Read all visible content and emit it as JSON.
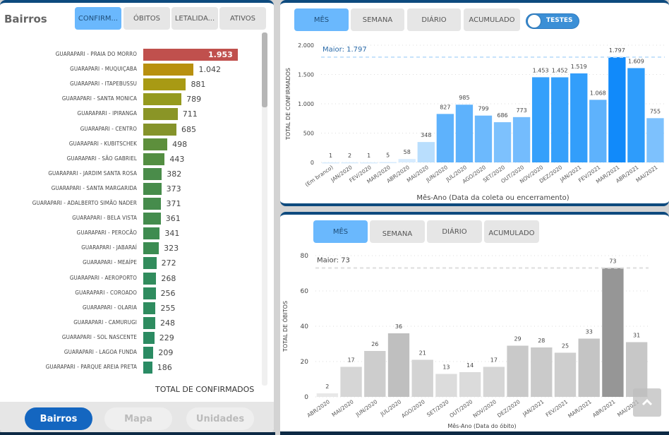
{
  "left_panel": {
    "title": "Bairros",
    "tabs": [
      "CONFIRM...",
      "ÓBITOS",
      "LETALIDA...",
      "ATIVOS"
    ],
    "active_tab": 0,
    "total_label": "TOTAL DE CONFIRMADOS",
    "nav": [
      "Bairros",
      "Mapa",
      "Unidades"
    ],
    "active_nav": 0
  },
  "top_chart_controls": {
    "tabs": [
      "MÊS",
      "SEMANA",
      "DIÁRIO",
      "ACUMULADO"
    ],
    "active_tab": 0,
    "toggle_label": "TESTES"
  },
  "bottom_chart_controls": {
    "tabs": [
      "MÊS",
      "SEMANA",
      "DIÁRIO",
      "ACUMULADO"
    ],
    "active_tab": 0
  },
  "chart_data": [
    {
      "type": "bar",
      "orientation": "horizontal",
      "title": "Bairros",
      "xlabel": "TOTAL DE CONFIRMADOS",
      "categories": [
        "GUARAPARI - PRAIA DO MORRO",
        "GUARAPARI - MUQUIÇABA",
        "GUARAPARI - ITAPEBUSSU",
        "GUARAPARI - SANTA MONICA",
        "GUARAPARI - IPIRANGA",
        "GUARAPARI - CENTRO",
        "GUARAPARI - KUBITSCHEK",
        "GUARAPARI - SÃO GABRIEL",
        "GUARAPARI - JARDIM SANTA ROSA",
        "GUARAPARI - SANTA MARGARIDA",
        "GUARAPARI - ADALBERTO SIMÃO NADER",
        "GUARAPARI - BELA VISTA",
        "GUARAPARI - PEROCÃO",
        "GUARAPARI - JABARAÍ",
        "GUARAPARI - MEAÍPE",
        "GUARAPARI - AEROPORTO",
        "GUARAPARI - COROADO",
        "GUARAPARI - OLARIA",
        "GUARAPARI - CAMURUGI",
        "GUARAPARI - SOL NASCENTE",
        "GUARAPARI - LAGOA FUNDA",
        "GUARAPARI - PARQUE AREIA PRETA"
      ],
      "values": [
        1953,
        1042,
        881,
        789,
        711,
        685,
        498,
        443,
        382,
        373,
        371,
        361,
        341,
        323,
        272,
        268,
        256,
        255,
        248,
        229,
        209,
        186
      ],
      "labels": [
        "1.953",
        "1.042",
        "881",
        "789",
        "711",
        "685",
        "498",
        "443",
        "382",
        "373",
        "371",
        "361",
        "341",
        "323",
        "272",
        "268",
        "256",
        "255",
        "248",
        "229",
        "209",
        "186"
      ],
      "colors": [
        "#c0504d",
        "#b8900f",
        "#a89a14",
        "#959a1e",
        "#8a9526",
        "#85932a",
        "#5d8f3c",
        "#538e42",
        "#4a8c4a",
        "#478c4b",
        "#468c4c",
        "#448c4d",
        "#3f8c50",
        "#3c8c52",
        "#328c5c",
        "#318c5d",
        "#2f8c5f",
        "#2f8c5f",
        "#2e8c60",
        "#2c8b62",
        "#2b8b63",
        "#2a8b64"
      ]
    },
    {
      "type": "bar",
      "title": "",
      "ylabel": "TOTAL DE CONFIRMADOS",
      "xlabel": "Mês-Ano (Data da coleta ou encerramento)",
      "ylim": [
        0,
        2000
      ],
      "yticks": [
        "0",
        "500",
        "1.000",
        "1.500",
        "2.000"
      ],
      "ytick_values": [
        0,
        500,
        1000,
        1500,
        2000
      ],
      "grid": true,
      "reference_line": {
        "label": "Maior: 1.797",
        "value": 1797
      },
      "categories": [
        "(Em branco)",
        "JAN/2020",
        "FEV/2020",
        "MAR/2020",
        "ABR/2020",
        "MAI/2020",
        "JUN/2020",
        "JUL/2020",
        "AGO/2020",
        "SET/2020",
        "OUT/2020",
        "NOV/2020",
        "DEZ/2020",
        "JAN/2021",
        "FEV/2021",
        "MAR/2021",
        "ABR/2021",
        "MAI/2021"
      ],
      "values": [
        1,
        2,
        1,
        5,
        58,
        348,
        827,
        985,
        799,
        686,
        773,
        1453,
        1452,
        1519,
        1068,
        1797,
        1609,
        755
      ],
      "labels": [
        "1",
        "2",
        "1",
        "5",
        "58",
        "348",
        "827",
        "985",
        "799",
        "686",
        "773",
        "1.453",
        "1.452",
        "1.519",
        "1.068",
        "1.797",
        "1.609",
        "755"
      ],
      "colors": [
        "#d6ebfe",
        "#d6ebfe",
        "#d6ebfe",
        "#d6ebfe",
        "#d6ebfe",
        "#b9defd",
        "#5eb2fc",
        "#5eb2fc",
        "#6cb9fd",
        "#7dc1fd",
        "#74bcfd",
        "#35a0fb",
        "#35a0fb",
        "#329efb",
        "#5eb2fc",
        "#118afa",
        "#2e9cfb",
        "#7dc1fd"
      ]
    },
    {
      "type": "bar",
      "title": "",
      "ylabel": "TOTAL DE ÓBITOS",
      "xlabel": "Mês-Ano (Data do óbito)",
      "ylim": [
        0,
        80
      ],
      "yticks": [
        "0",
        "20",
        "40",
        "60",
        "80"
      ],
      "ytick_values": [
        0,
        20,
        40,
        60,
        80
      ],
      "grid": true,
      "reference_line": {
        "label": "Maior: 73",
        "value": 73
      },
      "categories": [
        "ABR/2020",
        "MAI/2020",
        "JUN/2020",
        "JUL/2020",
        "AGO/2020",
        "SET/2020",
        "OUT/2020",
        "NOV/2020",
        "DEZ/2020",
        "JAN/2021",
        "FEV/2021",
        "MAR/2021",
        "ABR/2021",
        "MAI/2021"
      ],
      "values": [
        2,
        17,
        26,
        36,
        21,
        13,
        14,
        17,
        29,
        28,
        25,
        33,
        73,
        31
      ],
      "labels": [
        "2",
        "17",
        "26",
        "36",
        "21",
        "13",
        "14",
        "17",
        "29",
        "28",
        "25",
        "33",
        "73",
        "31"
      ],
      "colors": [
        "#e8e8e8",
        "#d6d6d6",
        "#cdcdcd",
        "#bfbfbf",
        "#d3d3d3",
        "#dcdcdc",
        "#dbdbdb",
        "#d6d6d6",
        "#c9c9c9",
        "#cacaca",
        "#cecece",
        "#c4c4c4",
        "#969696",
        "#c7c7c7"
      ]
    }
  ]
}
